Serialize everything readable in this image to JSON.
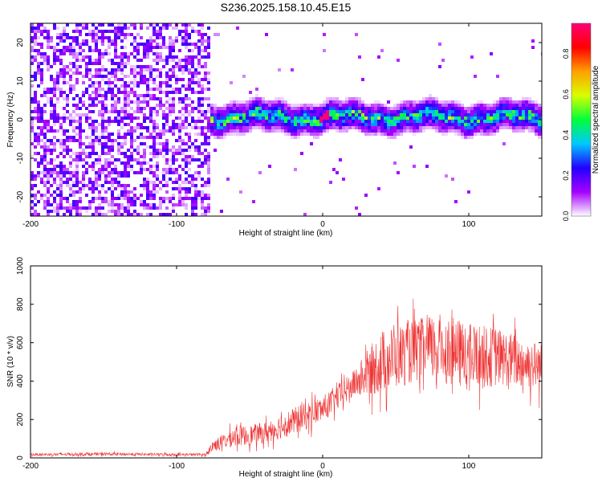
{
  "title": "S236.2025.158.10.45.E15",
  "chart_data": [
    {
      "type": "heatmap",
      "xlabel": "Height of straight line (km)",
      "ylabel": "Frequency (Hz)",
      "xlim": [
        -200,
        150
      ],
      "ylim": [
        -25,
        25
      ],
      "x_ticks": [
        -200,
        -100,
        0,
        100
      ],
      "y_ticks": [
        -20,
        -10,
        0,
        10,
        20
      ],
      "colorbar": {
        "label": "Normalized spectral amplitude",
        "range": [
          0,
          0.95
        ],
        "ticks": [
          "0.0",
          "0.2",
          "0.4",
          "0.6",
          "0.8"
        ],
        "colors": [
          "#ffffff",
          "#a500ff",
          "#2200ff",
          "#00c8ff",
          "#00ff3a",
          "#d8ff00",
          "#ffa000",
          "#ff0000",
          "#ff0078"
        ]
      },
      "regions": [
        {
          "x_range": [
            -200,
            -78
          ],
          "description": "diffuse purple noise across all frequencies"
        },
        {
          "x_range": [
            -78,
            150
          ],
          "center_freq_hz": 1,
          "band_halfwidth_hz": 3,
          "description": "narrow band of high amplitude near 0 Hz"
        }
      ],
      "peak": {
        "x_range": [
          -3,
          3
        ],
        "freq": 1,
        "amplitude": 0.95
      }
    },
    {
      "type": "line",
      "xlabel": "Height of straight line (km)",
      "ylabel": "SNR (10 * v/v)",
      "xlim": [
        -200,
        150
      ],
      "ylim": [
        0,
        1000
      ],
      "x_ticks": [
        -200,
        -100,
        0,
        100
      ],
      "y_ticks": [
        0,
        200,
        400,
        600,
        800,
        1000
      ],
      "series": [
        {
          "color": "#ee3333",
          "envelope": [
            {
              "x": -200,
              "low": 5,
              "high": 30
            },
            {
              "x": -150,
              "low": 5,
              "high": 35
            },
            {
              "x": -100,
              "low": 5,
              "high": 30
            },
            {
              "x": -80,
              "low": 5,
              "high": 30
            },
            {
              "x": -75,
              "low": 10,
              "high": 120
            },
            {
              "x": -60,
              "low": 20,
              "high": 200
            },
            {
              "x": -40,
              "low": 30,
              "high": 230
            },
            {
              "x": -20,
              "low": 60,
              "high": 320
            },
            {
              "x": 0,
              "low": 130,
              "high": 380
            },
            {
              "x": 20,
              "low": 250,
              "high": 500
            },
            {
              "x": 40,
              "low": 200,
              "high": 800
            },
            {
              "x": 60,
              "low": 250,
              "high": 850
            },
            {
              "x": 80,
              "low": 250,
              "high": 900
            },
            {
              "x": 100,
              "low": 200,
              "high": 850
            },
            {
              "x": 120,
              "low": 250,
              "high": 800
            },
            {
              "x": 150,
              "low": 250,
              "high": 700
            }
          ]
        }
      ]
    }
  ]
}
